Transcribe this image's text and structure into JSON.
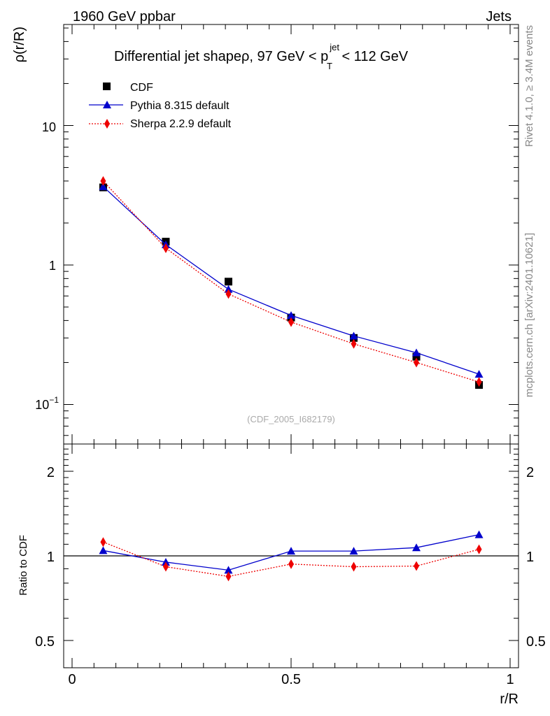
{
  "header": {
    "left": "1960 GeV ppbar",
    "right": "Jets"
  },
  "side_labels": {
    "rivet": "Rivet 4.1.0, ≥ 3.4M events",
    "mcplots": "mcplots.cern.ch [arXiv:2401.10621]"
  },
  "chart_data": [
    {
      "type": "line",
      "panel": "main",
      "title": "Differential jet shapeρ, 97 GeV < p_T^jet < 112 GeV",
      "title_main": "Differential jet shapeρ, 97 GeV < p",
      "title_sup": "jet",
      "title_sub": "T",
      "title_tail": " < 112 GeV",
      "xlabel": "r/R",
      "ylabel": "ρ(r/R)",
      "yscale": "log",
      "xlim": [
        0,
        1
      ],
      "ylim": [
        0.055,
        50
      ],
      "watermark": "(CDF_2005_I682179)",
      "x": [
        0.071,
        0.214,
        0.357,
        0.5,
        0.643,
        0.786,
        0.929
      ],
      "series": [
        {
          "name": "CDF",
          "color": "#000000",
          "marker": "square",
          "values": [
            3.6,
            1.47,
            0.76,
            0.42,
            0.3,
            0.22,
            0.138
          ]
        },
        {
          "name": "Pythia 8.315 default",
          "color": "#0000cc",
          "marker": "triangle",
          "values": [
            3.65,
            1.4,
            0.67,
            0.435,
            0.31,
            0.235,
            0.165
          ]
        },
        {
          "name": "Sherpa 2.2.9 default",
          "color": "#ee0000",
          "marker": "diamond",
          "values": [
            4.0,
            1.32,
            0.62,
            0.39,
            0.272,
            0.2,
            0.145
          ]
        }
      ],
      "ytick_labels": [
        {
          "value": 0.1,
          "base": "10",
          "exp": "−1"
        },
        {
          "value": 1,
          "base": "1",
          "exp": ""
        },
        {
          "value": 10,
          "base": "10",
          "exp": ""
        }
      ]
    },
    {
      "type": "line",
      "panel": "ratio",
      "xlabel": "r/R",
      "ylabel": "Ratio to CDF",
      "yscale": "log",
      "xlim": [
        0,
        1
      ],
      "ylim": [
        0.4,
        2.5
      ],
      "reference": 1,
      "x": [
        0.071,
        0.214,
        0.357,
        0.5,
        0.643,
        0.786,
        0.929
      ],
      "series": [
        {
          "name": "Pythia 8.315 default",
          "color": "#0000cc",
          "marker": "triangle",
          "values": [
            1.045,
            0.95,
            0.89,
            1.04,
            1.04,
            1.07,
            1.19
          ]
        },
        {
          "name": "Sherpa 2.2.9 default",
          "color": "#ee0000",
          "marker": "diamond",
          "values": [
            1.12,
            0.915,
            0.845,
            0.935,
            0.915,
            0.92,
            1.055
          ]
        }
      ],
      "ytick_labels": [
        {
          "value": 0.5,
          "label": "0.5"
        },
        {
          "value": 1,
          "label": "1"
        },
        {
          "value": 2,
          "label": "2"
        }
      ],
      "xtick_labels": [
        {
          "value": 0,
          "label": "0"
        },
        {
          "value": 0.5,
          "label": "0.5"
        },
        {
          "value": 1,
          "label": "1"
        }
      ]
    }
  ]
}
